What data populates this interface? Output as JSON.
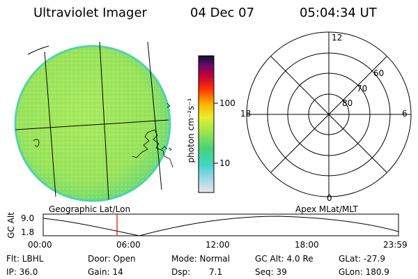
{
  "header": {
    "instrument": "Ultraviolet Imager",
    "date": "04 Dec 07",
    "time": "05:04:34 UT"
  },
  "colorbar": {
    "unit_label": "photon cm⁻²s⁻¹",
    "ticks": [
      "100",
      "10"
    ]
  },
  "polar_plot": {
    "mlt_labels": {
      "top": "12",
      "right": "6",
      "bottom": "0",
      "left": "18"
    },
    "lat_labels": [
      "60",
      "70",
      "80"
    ]
  },
  "footer_labels": {
    "left": "Geographic Lat/Lon",
    "right": "Apex MLat/MLT"
  },
  "alt_plot": {
    "ylabel": "GC Alt",
    "y_ticks": [
      "9.0",
      "1.8"
    ],
    "x_ticks": [
      "00:00",
      "06:00",
      "12:00",
      "18:00",
      "23:59"
    ]
  },
  "info": {
    "flt": "Flt: LBHL",
    "door": "Door: Open",
    "mode": "Mode: Normal",
    "gc_alt": "GC Alt: 4.0 Re",
    "glat": "GLat: -27.9",
    "ip": "IP: 36.0",
    "gain": "Gain: 14",
    "dsp": "Dsp:",
    "dsp_val": "7.1",
    "seq": "Seq: 39",
    "glon": "GLon: 180.9"
  },
  "colors": {
    "disk_green": "#9be65a",
    "disk_edge": "#3ed3a8",
    "marker_red": "#e00000"
  }
}
